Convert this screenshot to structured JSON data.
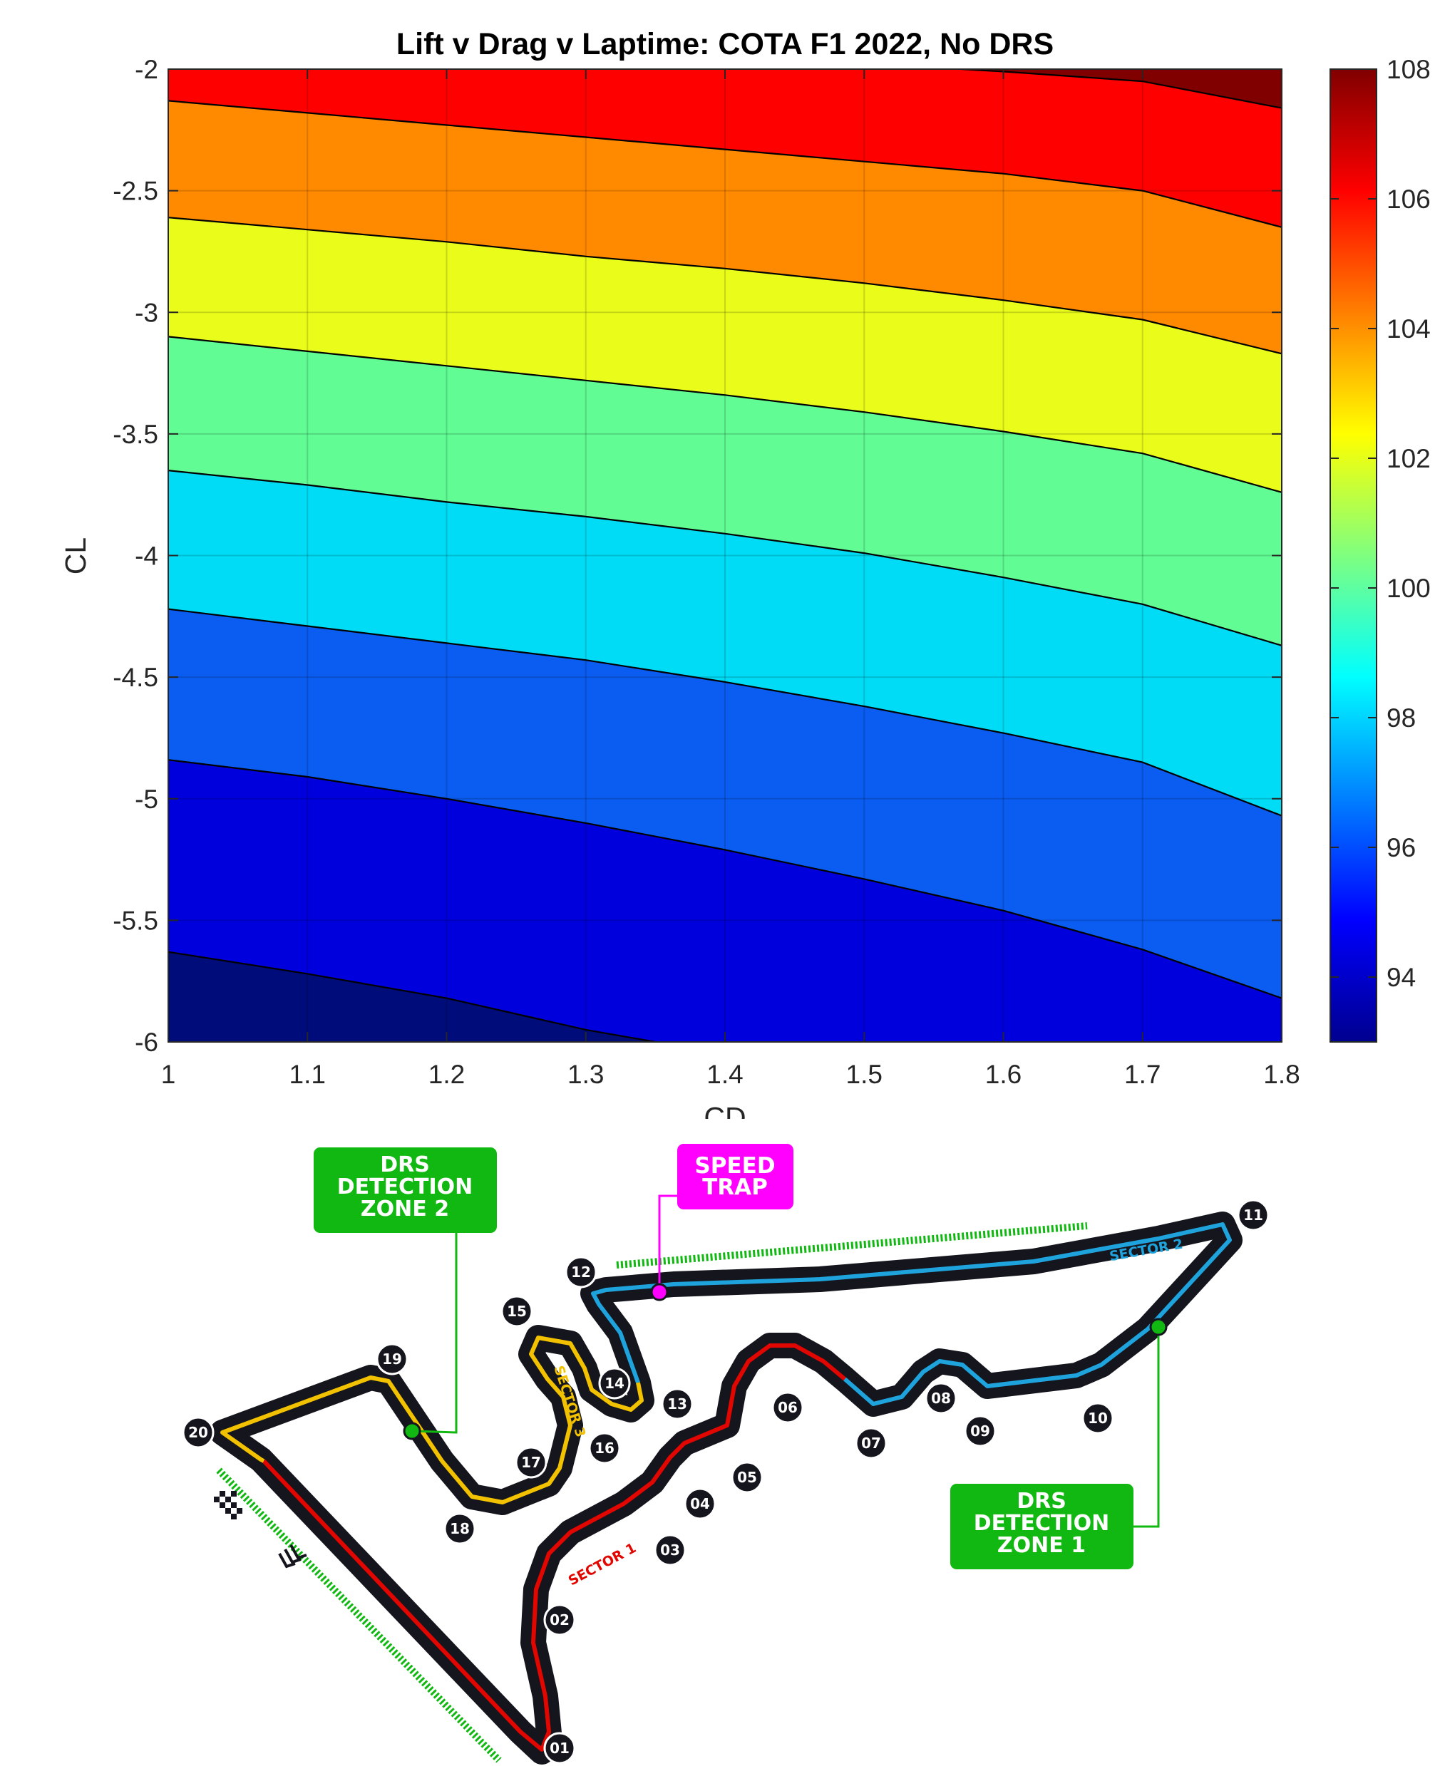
{
  "chart_data": {
    "type": "contour",
    "title": "Lift v Drag v Laptime: COTA F1 2022, No DRS",
    "xlabel": "CD",
    "ylabel": "CL",
    "xlim": [
      1,
      1.8
    ],
    "ylim": [
      -6,
      -2
    ],
    "xticks": [
      "1",
      "1.1",
      "1.2",
      "1.3",
      "1.4",
      "1.5",
      "1.6",
      "1.7",
      "1.8"
    ],
    "yticks": [
      "-2",
      "-2.5",
      "-3",
      "-3.5",
      "-4",
      "-4.5",
      "-5",
      "-5.5",
      "-6"
    ],
    "grid": true,
    "colormap": "jet",
    "colorbar": {
      "range": [
        93,
        108
      ],
      "ticks": [
        "94",
        "96",
        "98",
        "100",
        "102",
        "104",
        "106",
        "108"
      ],
      "tick_values": [
        94,
        96,
        98,
        100,
        102,
        104,
        106,
        108
      ]
    },
    "contour_lines": [
      {
        "level": 94,
        "points": [
          [
            1.0,
            -5.63
          ],
          [
            1.1,
            -5.72
          ],
          [
            1.2,
            -5.82
          ],
          [
            1.3,
            -5.95
          ],
          [
            1.35,
            -6.0
          ]
        ]
      },
      {
        "level": 96,
        "points": [
          [
            1.0,
            -4.84
          ],
          [
            1.1,
            -4.91
          ],
          [
            1.2,
            -5.0
          ],
          [
            1.3,
            -5.1
          ],
          [
            1.4,
            -5.21
          ],
          [
            1.5,
            -5.33
          ],
          [
            1.6,
            -5.46
          ],
          [
            1.7,
            -5.62
          ],
          [
            1.8,
            -5.82
          ]
        ]
      },
      {
        "level": 98,
        "points": [
          [
            1.0,
            -4.22
          ],
          [
            1.1,
            -4.29
          ],
          [
            1.2,
            -4.36
          ],
          [
            1.3,
            -4.43
          ],
          [
            1.4,
            -4.52
          ],
          [
            1.5,
            -4.62
          ],
          [
            1.6,
            -4.73
          ],
          [
            1.7,
            -4.85
          ],
          [
            1.8,
            -5.07
          ]
        ]
      },
      {
        "level": 100,
        "points": [
          [
            1.0,
            -3.65
          ],
          [
            1.1,
            -3.71
          ],
          [
            1.2,
            -3.78
          ],
          [
            1.3,
            -3.84
          ],
          [
            1.4,
            -3.91
          ],
          [
            1.5,
            -3.99
          ],
          [
            1.6,
            -4.09
          ],
          [
            1.7,
            -4.2
          ],
          [
            1.8,
            -4.37
          ]
        ]
      },
      {
        "level": 102,
        "points": [
          [
            1.0,
            -3.1
          ],
          [
            1.1,
            -3.16
          ],
          [
            1.2,
            -3.22
          ],
          [
            1.3,
            -3.28
          ],
          [
            1.4,
            -3.34
          ],
          [
            1.5,
            -3.41
          ],
          [
            1.6,
            -3.49
          ],
          [
            1.7,
            -3.58
          ],
          [
            1.8,
            -3.74
          ]
        ]
      },
      {
        "level": 104,
        "points": [
          [
            1.0,
            -2.61
          ],
          [
            1.1,
            -2.66
          ],
          [
            1.2,
            -2.71
          ],
          [
            1.3,
            -2.77
          ],
          [
            1.4,
            -2.82
          ],
          [
            1.5,
            -2.88
          ],
          [
            1.6,
            -2.95
          ],
          [
            1.7,
            -3.03
          ],
          [
            1.8,
            -3.17
          ]
        ]
      },
      {
        "level": 106,
        "points": [
          [
            1.0,
            -2.13
          ],
          [
            1.1,
            -2.18
          ],
          [
            1.2,
            -2.23
          ],
          [
            1.3,
            -2.28
          ],
          [
            1.4,
            -2.33
          ],
          [
            1.5,
            -2.38
          ],
          [
            1.6,
            -2.43
          ],
          [
            1.7,
            -2.5
          ],
          [
            1.8,
            -2.65
          ]
        ]
      },
      {
        "level": 108,
        "points": [
          [
            1.57,
            -2.0
          ],
          [
            1.6,
            -2.01
          ],
          [
            1.7,
            -2.05
          ],
          [
            1.8,
            -2.16
          ]
        ]
      }
    ],
    "band_colors": [
      "#000c7a",
      "#0000dd",
      "#0b5cf0",
      "#00dcf5",
      "#62fc94",
      "#e9fc1a",
      "#ff8a00",
      "#ff0000",
      "#800000"
    ]
  },
  "track_map": {
    "colors": {
      "sector1": "#e10600",
      "sector2": "#1fa3dc",
      "sector3": "#f2c200",
      "drs_zone": "#12b812",
      "speed_trap": "#ff00ff",
      "asphalt": "#15151e"
    },
    "sector_labels": [
      "SECTOR 1",
      "SECTOR 2",
      "SECTOR 3"
    ],
    "callouts": {
      "drs_zone_2": [
        "DRS",
        "DETECTION",
        "ZONE 2"
      ],
      "drs_zone_1": [
        "DRS",
        "DETECTION",
        "ZONE 1"
      ],
      "speed_trap": [
        "SPEED",
        "TRAP"
      ]
    },
    "turns": [
      "01",
      "02",
      "03",
      "04",
      "05",
      "06",
      "07",
      "08",
      "09",
      "10",
      "11",
      "12",
      "13",
      "14",
      "15",
      "16",
      "17",
      "18",
      "19",
      "20"
    ],
    "icons": [
      "checkered-flag-icon",
      "direction-chevrons-icon"
    ]
  }
}
